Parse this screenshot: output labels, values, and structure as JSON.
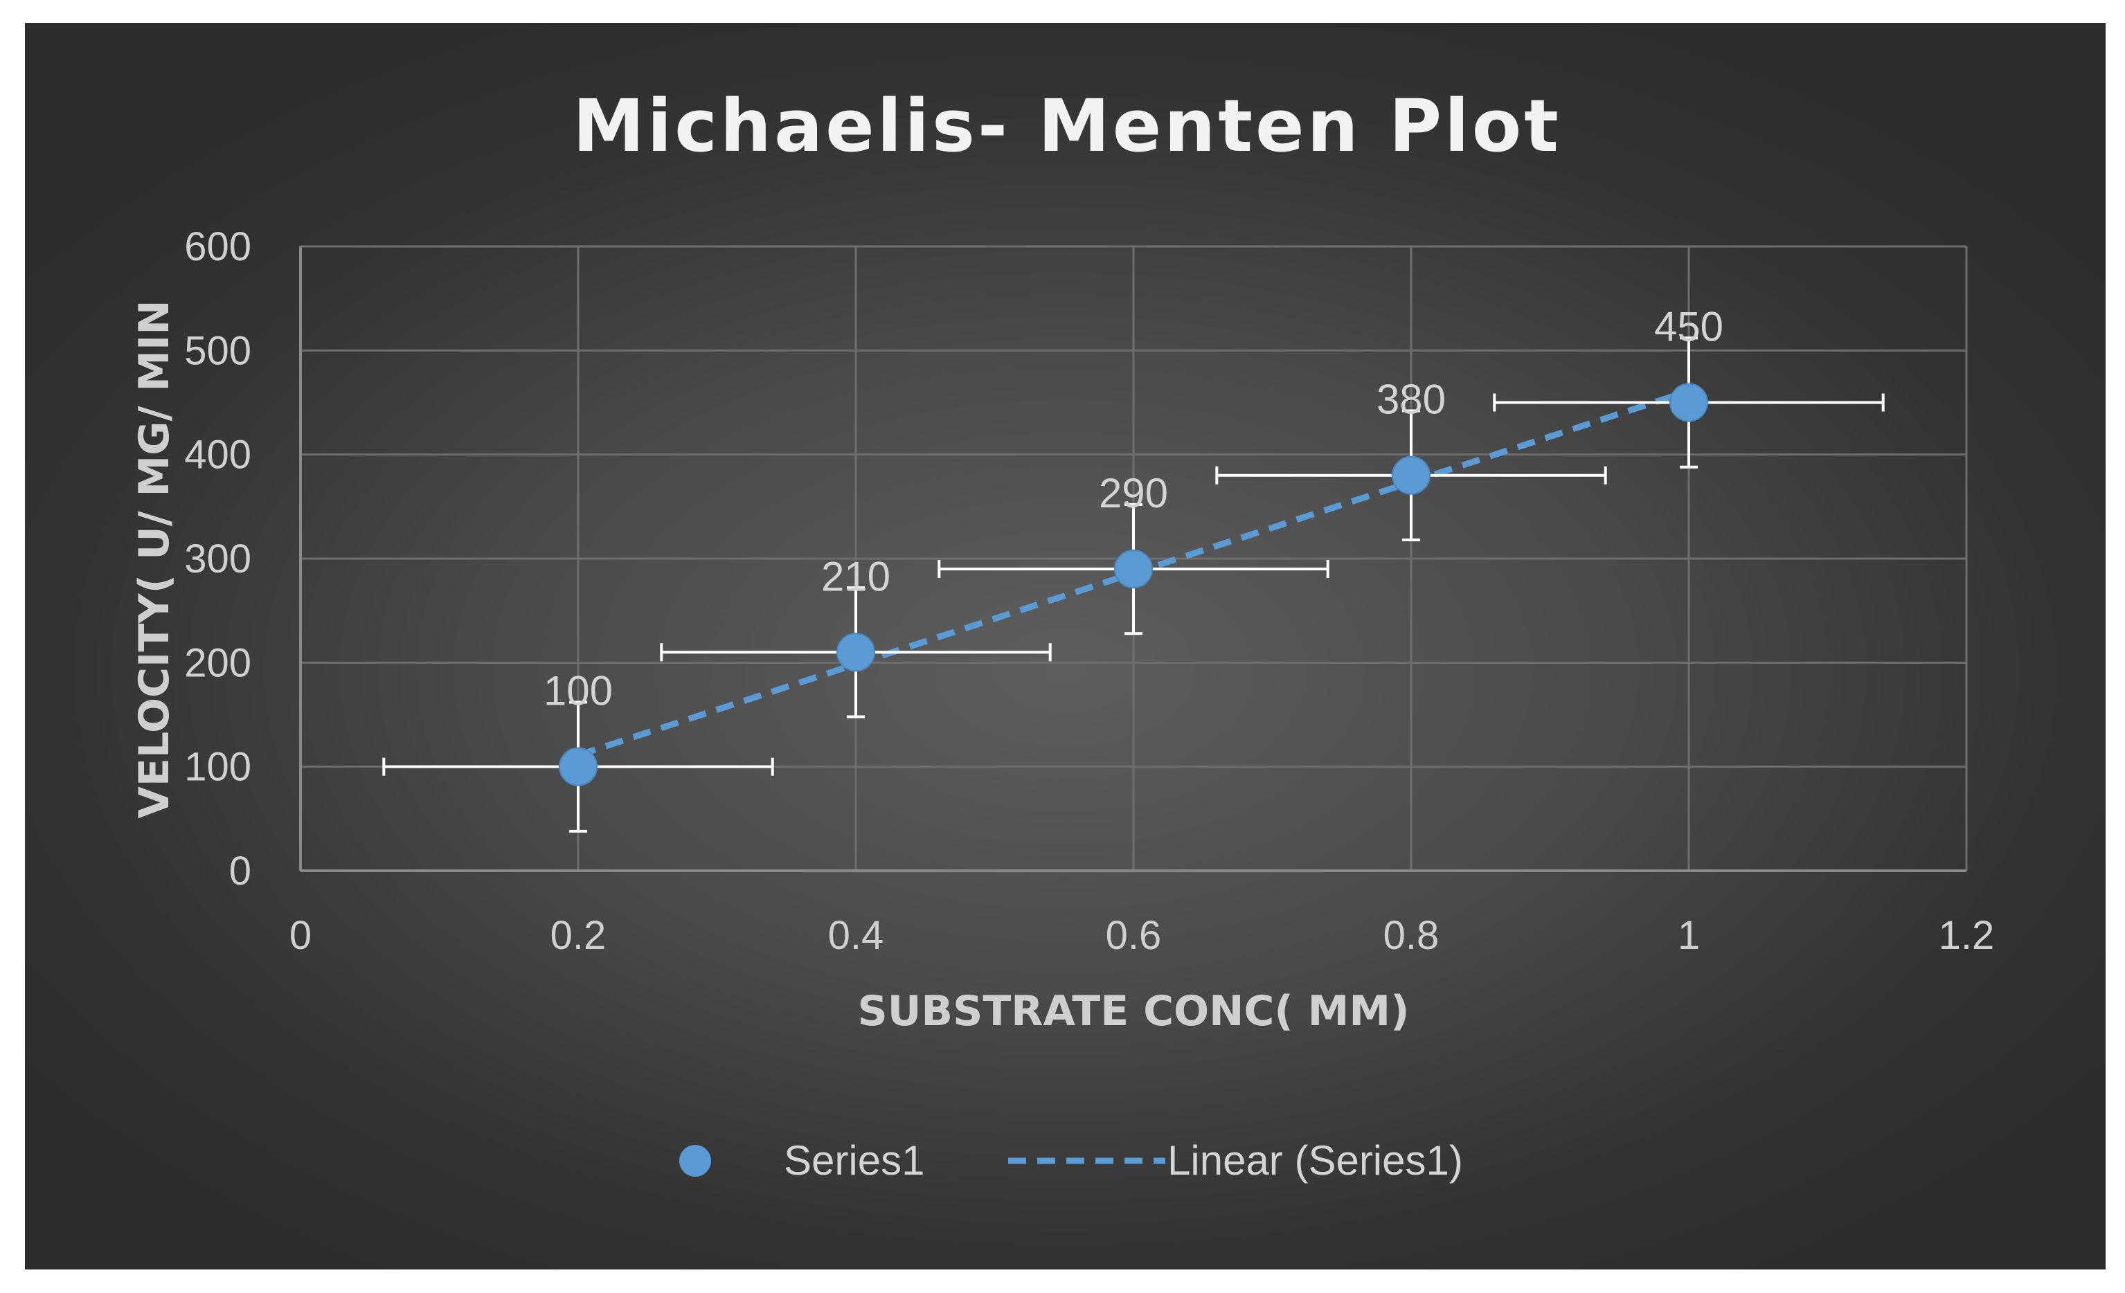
{
  "colors": {
    "background": "#3f3f3f",
    "gridline": "#6e6e6e",
    "marker": "#5b9bd5",
    "trendline": "#5b9bd5",
    "error_bar": "#ffffff",
    "text": "#d0d0d0"
  },
  "chart_data": {
    "type": "scatter",
    "title": "Michaelis- Menten Plot",
    "xlabel": "SUBSTRATE CONC( MM)",
    "ylabel": "VELOCITY( U/ MG/ MIN",
    "xlim": [
      0,
      1.2
    ],
    "ylim": [
      0,
      600
    ],
    "x_ticks": [
      "0",
      "0.2",
      "0.4",
      "0.6",
      "0.8",
      "1",
      "1.2"
    ],
    "y_ticks": [
      "0",
      "100",
      "200",
      "300",
      "400",
      "500",
      "600"
    ],
    "grid": true,
    "legend_position": "bottom",
    "series": [
      {
        "name": "Series1",
        "x": [
          0.2,
          0.4,
          0.6,
          0.8,
          1.0
        ],
        "y": [
          100,
          210,
          290,
          380,
          450
        ],
        "data_labels": [
          "100",
          "210",
          "290",
          "380",
          "450"
        ],
        "x_error": 0.14,
        "y_error": 62
      }
    ],
    "trendline": {
      "name": "Linear (Series1)",
      "type": "linear",
      "style": "dashed",
      "slope": 437.5,
      "intercept": 23.5
    },
    "legend": [
      "Series1",
      "Linear (Series1)"
    ]
  }
}
